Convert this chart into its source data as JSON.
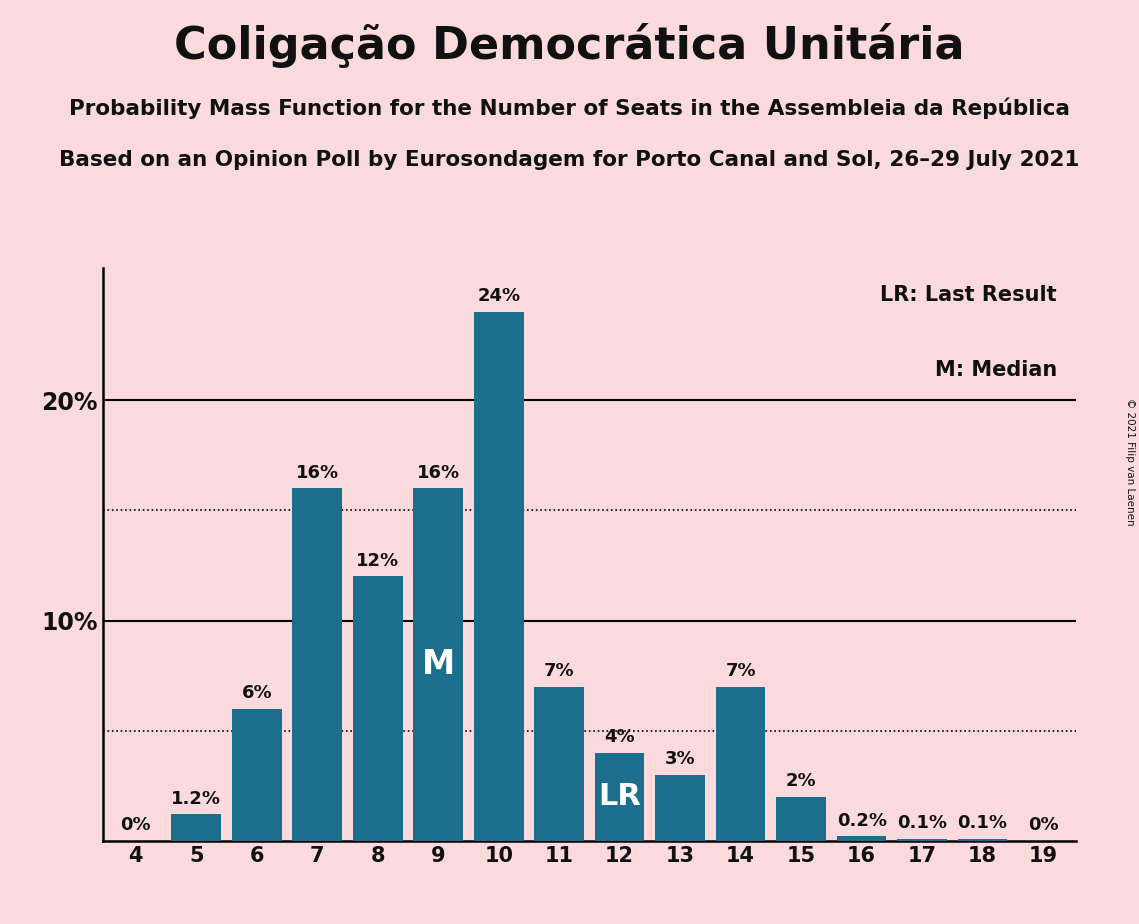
{
  "title": "Coligação Democrática Unitária",
  "subtitle1": "Probability Mass Function for the Number of Seats in the Assembleia da República",
  "subtitle2": "Based on an Opinion Poll by Eurosondagem for Porto Canal and Sol, 26–29 July 2021",
  "copyright": "© 2021 Filip van Laenen",
  "seats": [
    4,
    5,
    6,
    7,
    8,
    9,
    10,
    11,
    12,
    13,
    14,
    15,
    16,
    17,
    18,
    19
  ],
  "probabilities": [
    0.0,
    1.2,
    6.0,
    16.0,
    12.0,
    16.0,
    24.0,
    7.0,
    4.0,
    3.0,
    7.0,
    2.0,
    0.2,
    0.1,
    0.1,
    0.0
  ],
  "bar_color": "#1b6e8c",
  "background_color": "#fadadd",
  "text_color": "#111111",
  "legend_LR": "LR: Last Result",
  "legend_M": "M: Median",
  "LR_seat": 12,
  "M_seat": 9,
  "dotted_lines": [
    5.0,
    15.0
  ],
  "solid_lines": [
    10.0,
    20.0
  ],
  "ylim": [
    0,
    26
  ],
  "bar_labels": [
    "0%",
    "1.2%",
    "6%",
    "16%",
    "12%",
    "16%",
    "24%",
    "7%",
    "4%",
    "3%",
    "7%",
    "2%",
    "0.2%",
    "0.1%",
    "0.1%",
    "0%"
  ]
}
